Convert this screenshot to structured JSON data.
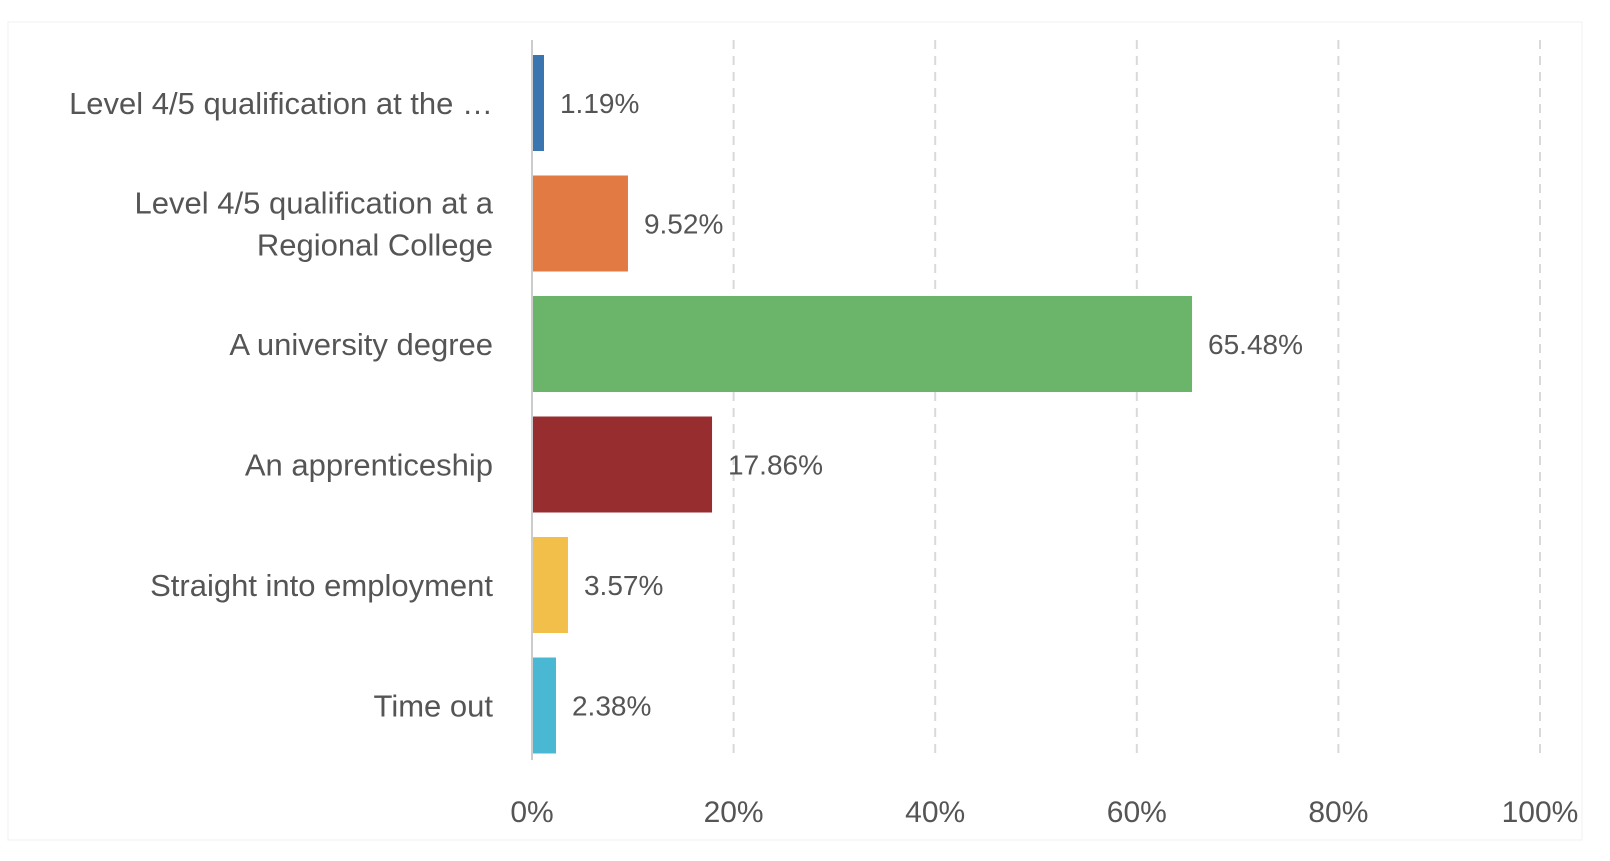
{
  "chart_data": {
    "type": "bar",
    "orientation": "horizontal",
    "categories": [
      [
        "Level 4/5 qualification at the …"
      ],
      [
        "Level 4/5 qualification at a",
        "Regional College"
      ],
      [
        "A university degree"
      ],
      [
        "An apprenticeship"
      ],
      [
        "Straight into employment"
      ],
      [
        "Time out"
      ]
    ],
    "values": [
      1.19,
      9.52,
      65.48,
      17.86,
      3.57,
      2.38
    ],
    "value_labels": [
      "1.19%",
      "9.52%",
      "65.48%",
      "17.86%",
      "3.57%",
      "2.38%"
    ],
    "colors": [
      "#3a75b0",
      "#e27a43",
      "#6ab56a",
      "#972d2f",
      "#f2bf4a",
      "#4bb8d3"
    ],
    "xlim": [
      0,
      100
    ],
    "x_ticks": [
      0,
      20,
      40,
      60,
      80,
      100
    ],
    "x_tick_labels": [
      "0%",
      "20%",
      "40%",
      "60%",
      "80%",
      "100%"
    ],
    "grid": "vertical dashed",
    "title": "",
    "xlabel": "",
    "ylabel": ""
  }
}
